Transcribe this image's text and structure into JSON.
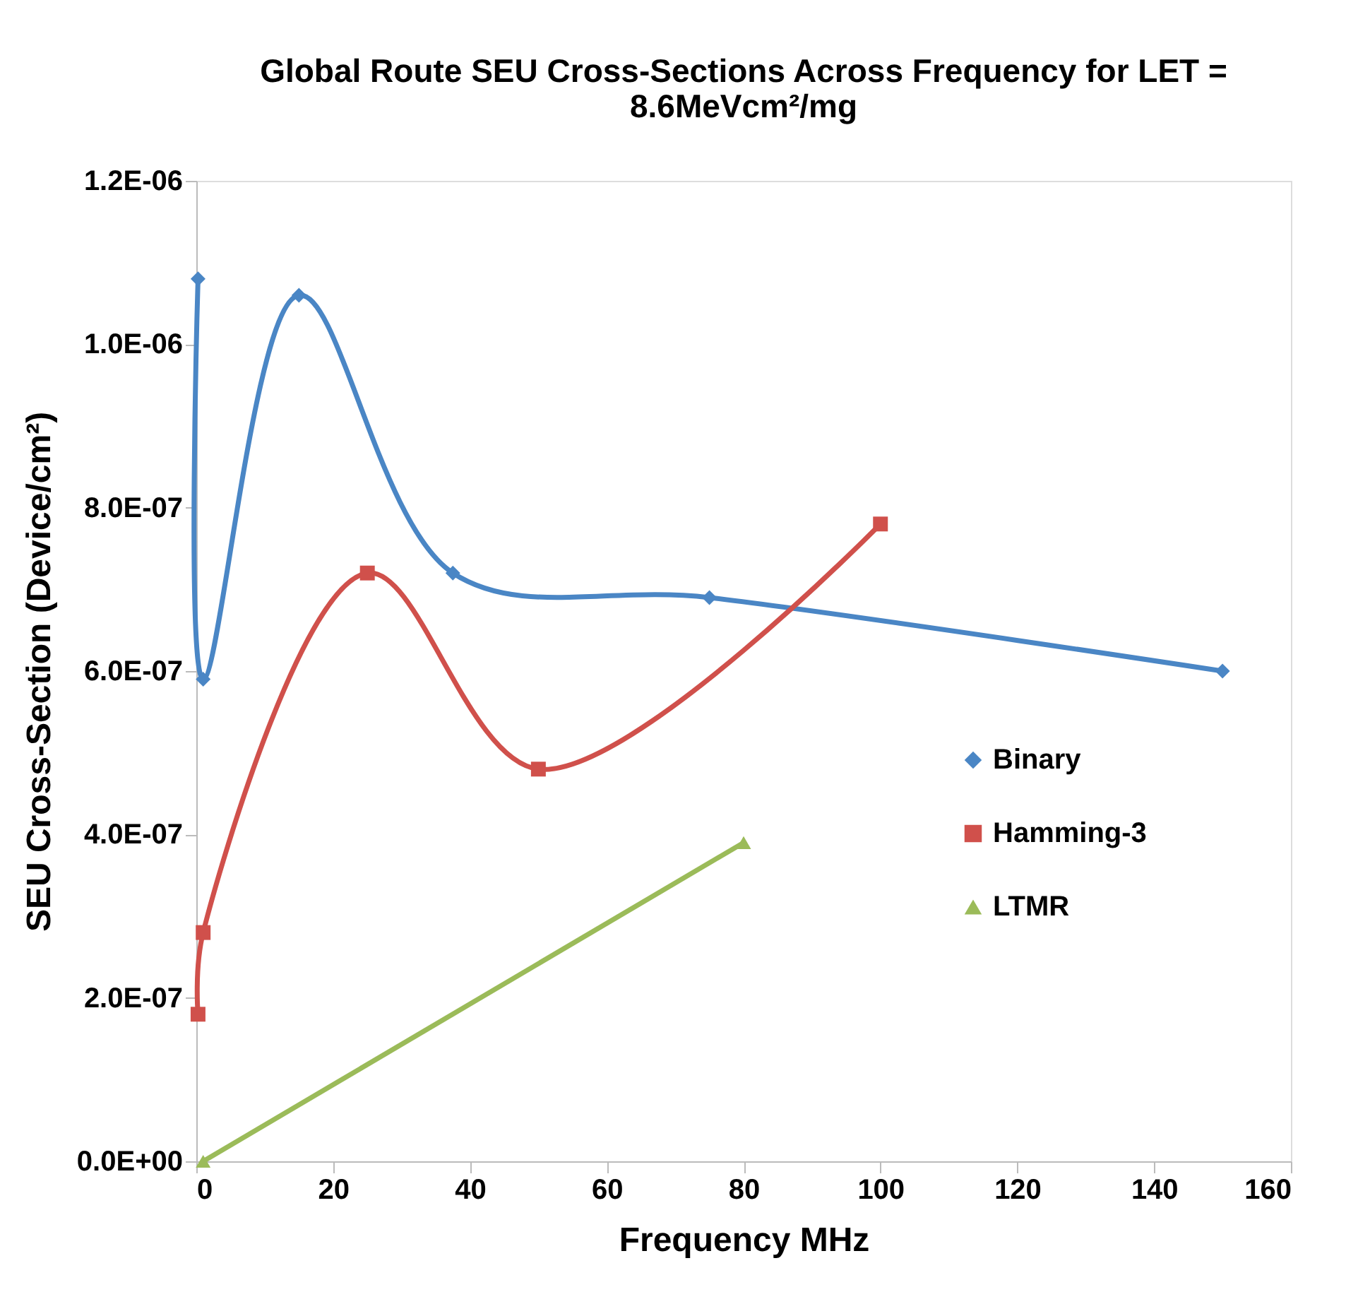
{
  "chart_data": {
    "type": "line",
    "title": "Global Route SEU Cross-Sections Across Frequency for LET = 8.6MeVcm²/mg",
    "xlabel": "Frequency MHz",
    "ylabel": "SEU Cross-Section (Device/cm²)",
    "xlim": [
      0,
      160
    ],
    "xticks": [
      0,
      20,
      40,
      60,
      80,
      100,
      120,
      140,
      160
    ],
    "ylim": [
      0,
      1.2e-06
    ],
    "yticks": [
      {
        "value": 0,
        "label": "0.0E+00"
      },
      {
        "value": 2e-07,
        "label": "2.0E-07"
      },
      {
        "value": 4e-07,
        "label": "4.0E-07"
      },
      {
        "value": 6e-07,
        "label": "6.0E-07"
      },
      {
        "value": 8e-07,
        "label": "8.0E-07"
      },
      {
        "value": 1e-06,
        "label": "1.0E-06"
      },
      {
        "value": 1.2e-06,
        "label": "1.2E-06"
      }
    ],
    "grid": false,
    "legend": "right",
    "line_style": "solid",
    "series": [
      {
        "name": "Binary",
        "color": "#4a86c5",
        "marker": "diamond",
        "x": [
          0.25,
          1,
          15,
          37.5,
          75,
          150
        ],
        "values": [
          1.08e-06,
          5.9e-07,
          1.06e-06,
          7.2e-07,
          6.9e-07,
          6e-07
        ]
      },
      {
        "name": "Hamming-3",
        "color": "#d0504b",
        "marker": "square",
        "x": [
          0.25,
          1,
          25,
          50,
          100
        ],
        "values": [
          1.8e-07,
          2.8e-07,
          7.2e-07,
          4.8e-07,
          7.8e-07
        ]
      },
      {
        "name": "LTMR",
        "color": "#9bbb59",
        "marker": "triangle",
        "x": [
          1,
          80
        ],
        "values": [
          0,
          3.9e-07
        ]
      }
    ]
  }
}
